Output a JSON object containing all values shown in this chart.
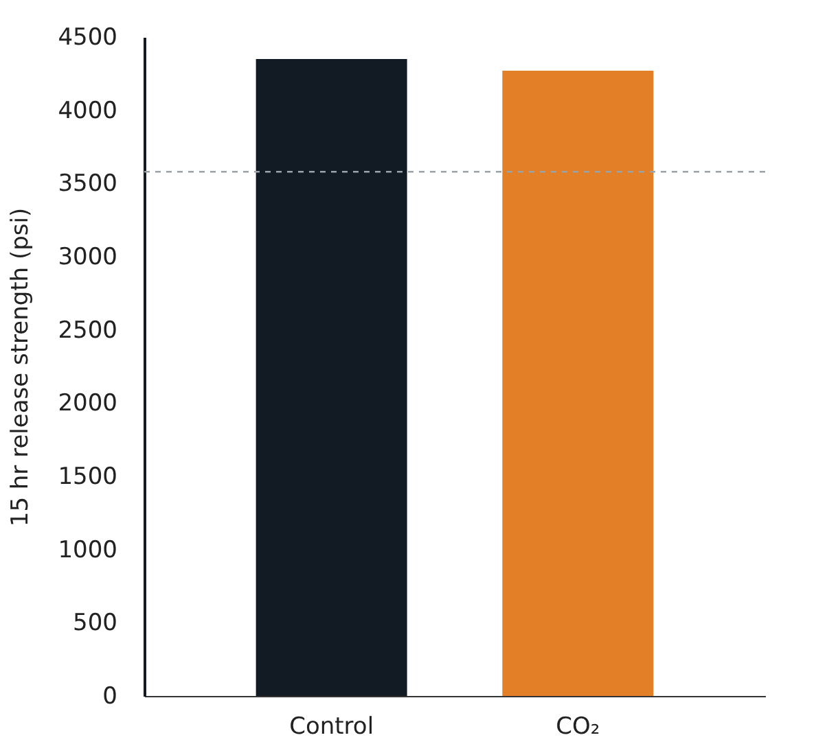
{
  "chart_data": {
    "type": "bar",
    "ylabel": "15 hr release strength (psi)",
    "categories": [
      "Control",
      "CO₂"
    ],
    "values": [
      4350,
      4270
    ],
    "colors": [
      "#121b23",
      "#e27f27"
    ],
    "ylim": [
      0,
      4500
    ],
    "yticks": [
      0,
      500,
      1000,
      1500,
      2000,
      2500,
      3000,
      3500,
      4000,
      4500
    ],
    "ref_lines": [
      {
        "axis": "y",
        "value": 3580,
        "color": "#9aa3a8",
        "line_style": "dashed"
      }
    ],
    "grid": false
  }
}
